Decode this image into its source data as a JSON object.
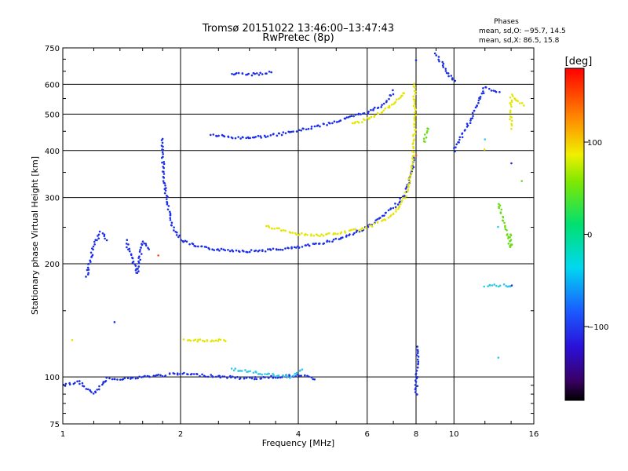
{
  "chart_data": {
    "type": "scatter",
    "title": "Tromsø 20151022 13:46:00–13:47:43",
    "subtitle": "RwPretec (8p)",
    "xlabel": "Frequency [MHz]",
    "ylabel": "Stationary phase Virtual Height [km]",
    "x_scale": "log",
    "y_scale": "log",
    "xlim": [
      1,
      16
    ],
    "ylim": [
      75,
      750
    ],
    "x_ticks": [
      1,
      2,
      4,
      6,
      8,
      10,
      16
    ],
    "x_tick_labels": [
      "1",
      "2",
      "4",
      "6",
      "8",
      "10",
      "16"
    ],
    "y_ticks": [
      75,
      100,
      200,
      300,
      400,
      500,
      600,
      750
    ],
    "y_tick_labels": [
      "75",
      "100",
      "200",
      "300",
      "400",
      "500",
      "600",
      "750"
    ],
    "grid": true,
    "legend": {
      "heading": "Phases",
      "lines": [
        "mean, sd,O: −95.7, 14.5",
        "mean, sd,X:  86.5, 15.8"
      ],
      "position": "top-right"
    },
    "colorbar": {
      "label": "[deg]",
      "range": [
        -180,
        180
      ],
      "ticks": [
        100,
        0,
        -100
      ],
      "tick_labels": [
        "100",
        "0",
        "−100"
      ]
    },
    "series": [
      {
        "color": "#1a2ee8",
        "points": [
          [
            1.8,
            430
          ],
          [
            1.8,
            380
          ],
          [
            1.82,
            330
          ],
          [
            1.85,
            290
          ],
          [
            1.9,
            255
          ],
          [
            2.0,
            232
          ],
          [
            2.2,
            222
          ],
          [
            2.5,
            218
          ],
          [
            3.0,
            216
          ],
          [
            3.5,
            218
          ],
          [
            4.0,
            221
          ],
          [
            4.5,
            226
          ],
          [
            5.0,
            232
          ],
          [
            5.5,
            240
          ],
          [
            6.0,
            250
          ],
          [
            6.5,
            265
          ],
          [
            7.0,
            282
          ],
          [
            7.5,
            305
          ],
          [
            7.8,
            345
          ],
          [
            7.9,
            385
          ]
        ]
      },
      {
        "color": "#1a2ee8",
        "points": [
          [
            2.4,
            440
          ],
          [
            2.8,
            432
          ],
          [
            3.2,
            435
          ],
          [
            3.6,
            442
          ],
          [
            4.0,
            452
          ],
          [
            4.5,
            465
          ],
          [
            5.0,
            478
          ],
          [
            5.5,
            492
          ],
          [
            6.0,
            505
          ],
          [
            6.5,
            525
          ],
          [
            6.8,
            550
          ],
          [
            7.0,
            575
          ]
        ]
      },
      {
        "color": "#1a2ee8",
        "points": [
          [
            1.0,
            95
          ],
          [
            1.1,
            97
          ],
          [
            1.2,
            90
          ],
          [
            1.3,
            99
          ],
          [
            1.4,
            99
          ],
          [
            1.5,
            99
          ],
          [
            1.6,
            100
          ],
          [
            2.0,
            102
          ],
          [
            2.3,
            101
          ],
          [
            2.6,
            100
          ],
          [
            3.0,
            99
          ],
          [
            3.5,
            100
          ],
          [
            4.0,
            101
          ],
          [
            4.4,
            99
          ]
        ]
      },
      {
        "color": "#1a2ee8",
        "points": [
          [
            1.15,
            185
          ],
          [
            1.2,
            225
          ],
          [
            1.25,
            242
          ],
          [
            1.3,
            232
          ],
          [
            1.35,
            140
          ],
          [
            1.45,
            230
          ],
          [
            1.55,
            188
          ],
          [
            1.6,
            230
          ],
          [
            1.65,
            218
          ]
        ]
      },
      {
        "color": "#1a2ee8",
        "points": [
          [
            2.7,
            640
          ],
          [
            3.0,
            637
          ],
          [
            3.2,
            640
          ],
          [
            3.4,
            645
          ]
        ]
      },
      {
        "color": "#e5e500",
        "points": [
          [
            3.3,
            252
          ],
          [
            3.6,
            246
          ],
          [
            4.0,
            240
          ],
          [
            4.5,
            238
          ],
          [
            5.0,
            240
          ],
          [
            5.5,
            245
          ],
          [
            6.0,
            250
          ],
          [
            6.5,
            258
          ],
          [
            7.0,
            270
          ],
          [
            7.5,
            300
          ],
          [
            7.8,
            350
          ],
          [
            7.9,
            420
          ],
          [
            7.95,
            500
          ],
          [
            7.9,
            600
          ]
        ]
      },
      {
        "color": "#e5e500",
        "points": [
          [
            5.5,
            470
          ],
          [
            6.0,
            485
          ],
          [
            6.5,
            505
          ],
          [
            7.0,
            530
          ],
          [
            7.5,
            570
          ]
        ]
      },
      {
        "color": "#e5e500",
        "points": [
          [
            1.05,
            125
          ],
          [
            2.05,
            125
          ],
          [
            2.3,
            125
          ],
          [
            2.6,
            125
          ]
        ]
      },
      {
        "color": "#6cdc1a",
        "points": [
          [
            8.4,
            420
          ],
          [
            8.5,
            445
          ],
          [
            8.6,
            460
          ]
        ]
      },
      {
        "color": "#30c8e6",
        "points": [
          [
            2.7,
            105
          ],
          [
            3.2,
            102
          ],
          [
            3.8,
            100
          ],
          [
            4.1,
            105
          ],
          [
            13,
            113
          ],
          [
            12,
            175
          ],
          [
            14,
            175
          ],
          [
            12,
            430
          ],
          [
            13,
            250
          ]
        ]
      },
      {
        "color": "#e5e500",
        "points": [
          [
            12,
            400
          ],
          [
            13,
            280
          ],
          [
            14,
            460
          ],
          [
            14,
            560
          ],
          [
            15,
            530
          ]
        ]
      },
      {
        "color": "#6cdc1a",
        "points": [
          [
            13,
            290
          ],
          [
            14,
            220
          ],
          [
            14,
            240
          ],
          [
            15,
            330
          ]
        ]
      },
      {
        "color": "#1a2ee8",
        "points": [
          [
            8,
            700
          ],
          [
            8.1,
            120
          ],
          [
            8,
            90
          ],
          [
            9,
            720
          ],
          [
            10,
            610
          ],
          [
            10,
            400
          ],
          [
            11,
            480
          ],
          [
            12,
            590
          ],
          [
            13,
            570
          ],
          [
            14,
            370
          ],
          [
            14,
            175
          ]
        ]
      },
      {
        "color": "#ff4a1a",
        "points": [
          [
            1.75,
            210
          ],
          [
            8.0,
            390
          ]
        ]
      }
    ]
  }
}
